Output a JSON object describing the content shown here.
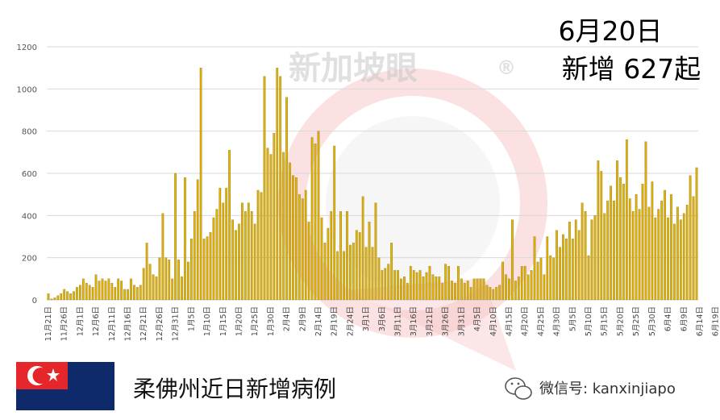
{
  "headline": {
    "date": "6月20日",
    "count_line": "新增 627起"
  },
  "footer": {
    "caption": "柔佛州近日新增病例",
    "wechat": "微信号: kanxinjiapo",
    "flag": "johor-flag",
    "flag_colors": {
      "red": "#e5262b",
      "white": "#ffffff",
      "navy": "#0e2a6b"
    }
  },
  "watermark": {
    "text": "新加坡眼",
    "mark": "®"
  },
  "colors": {
    "bar_light": "#f2c40a",
    "bar_dark": "#b58a00",
    "grid": "#d9d9d9"
  },
  "chart_data": {
    "type": "bar",
    "title": "",
    "xlabel": "",
    "ylabel": "",
    "ylim": [
      0,
      1200
    ],
    "yticks": [
      0,
      200,
      400,
      600,
      800,
      1000,
      1200
    ],
    "grid": true,
    "x_start": "11月21日",
    "x_end": "6月20日",
    "tick_labels": [
      "11月21日",
      "11月26日",
      "12月1日",
      "12月6日",
      "12月11日",
      "12月16日",
      "12月21日",
      "12月26日",
      "12月31日",
      "1月5日",
      "1月10日",
      "1月15日",
      "1月20日",
      "1月25日",
      "1月30日",
      "2月4日",
      "2月9日",
      "2月14日",
      "2月19日",
      "2月24日",
      "3月1日",
      "3月6日",
      "3月11日",
      "3月16日",
      "3月21日",
      "3月26日",
      "3月31日",
      "4月5日",
      "4月10日",
      "4月15日",
      "4月20日",
      "4月25日",
      "4月30日",
      "5月5日",
      "5月10日",
      "5月15日",
      "5月20日",
      "5月25日",
      "5月30日",
      "6月4日",
      "6月9日",
      "6月14日",
      "6月19日"
    ],
    "values": [
      30,
      5,
      10,
      20,
      30,
      50,
      40,
      30,
      40,
      60,
      70,
      100,
      80,
      70,
      60,
      120,
      90,
      100,
      90,
      100,
      80,
      60,
      100,
      90,
      50,
      50,
      100,
      70,
      60,
      70,
      150,
      270,
      170,
      120,
      110,
      200,
      410,
      200,
      190,
      100,
      600,
      190,
      110,
      580,
      180,
      290,
      420,
      570,
      1100,
      290,
      300,
      320,
      390,
      430,
      530,
      460,
      530,
      710,
      380,
      330,
      360,
      460,
      420,
      460,
      420,
      360,
      520,
      510,
      1060,
      720,
      690,
      790,
      1100,
      1060,
      700,
      960,
      650,
      590,
      580,
      500,
      480,
      520,
      370,
      770,
      740,
      800,
      390,
      270,
      340,
      420,
      730,
      230,
      420,
      230,
      420,
      260,
      270,
      330,
      320,
      490,
      250,
      370,
      250,
      460,
      200,
      140,
      150,
      170,
      270,
      140,
      140,
      100,
      110,
      80,
      160,
      140,
      130,
      140,
      110,
      130,
      160,
      120,
      110,
      110,
      80,
      170,
      160,
      90,
      80,
      160,
      100,
      80,
      90,
      60,
      100,
      100,
      100,
      100,
      70,
      60,
      50,
      60,
      70,
      180,
      120,
      100,
      380,
      90,
      110,
      160,
      160,
      120,
      140,
      300,
      180,
      200,
      120,
      300,
      210,
      200,
      330,
      250,
      310,
      290,
      370,
      290,
      380,
      330,
      460,
      420,
      210,
      380,
      400,
      660,
      610,
      410,
      470,
      540,
      470,
      660,
      580,
      550,
      760,
      480,
      420,
      500,
      430,
      550,
      750,
      440,
      560,
      390,
      430,
      470,
      520,
      390,
      500,
      360,
      440,
      380,
      410,
      450,
      590,
      490,
      627
    ]
  }
}
